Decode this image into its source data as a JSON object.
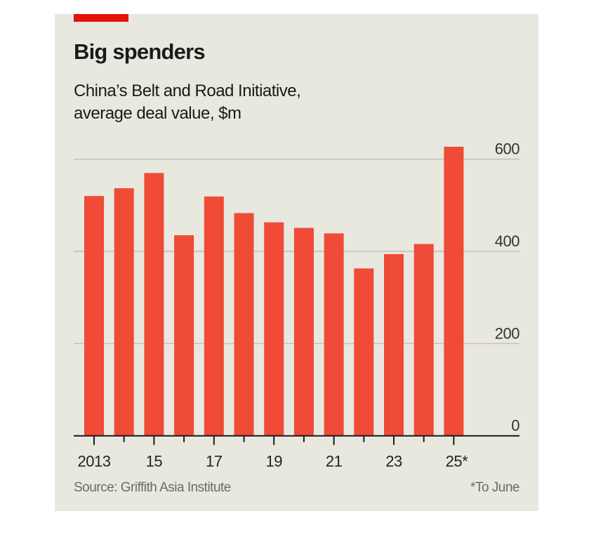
{
  "header": {
    "title": "Big spenders",
    "subtitle_line1": "China’s Belt and Road Initiative,",
    "subtitle_line2": "average deal value, $m"
  },
  "footer": {
    "source": "Source: Griffith Asia Institute",
    "footnote": "*To June"
  },
  "colors": {
    "bar": "#ef4b36",
    "accent_tag": "#e3120b",
    "background": "#e9e8df",
    "gridline": "#c4c3bb",
    "axis": "#1a1a1a"
  },
  "chart_data": {
    "type": "bar",
    "title": "Big spenders",
    "subtitle": "China’s Belt and Road Initiative, average deal value, $m",
    "xlabel": "",
    "ylabel": "$m",
    "categories": [
      "2013",
      "2014",
      "2015",
      "2016",
      "2017",
      "2018",
      "2019",
      "2020",
      "2021",
      "2022",
      "2023",
      "2024",
      "2025*"
    ],
    "x_tick_labels": [
      "2013",
      "",
      "15",
      "",
      "17",
      "",
      "19",
      "",
      "21",
      "",
      "23",
      "",
      "25*"
    ],
    "values": [
      520,
      537,
      570,
      435,
      519,
      483,
      463,
      451,
      439,
      363,
      394,
      416,
      627
    ],
    "ylim": [
      0,
      600
    ],
    "y_ticks": [
      0,
      200,
      400,
      600
    ],
    "y_tick_labels": [
      "0",
      "200",
      "400",
      "600"
    ],
    "y_axis_side": "right",
    "grid": true,
    "legend": "none",
    "annotations": [
      "*To June"
    ],
    "source": "Source: Griffith Asia Institute"
  }
}
